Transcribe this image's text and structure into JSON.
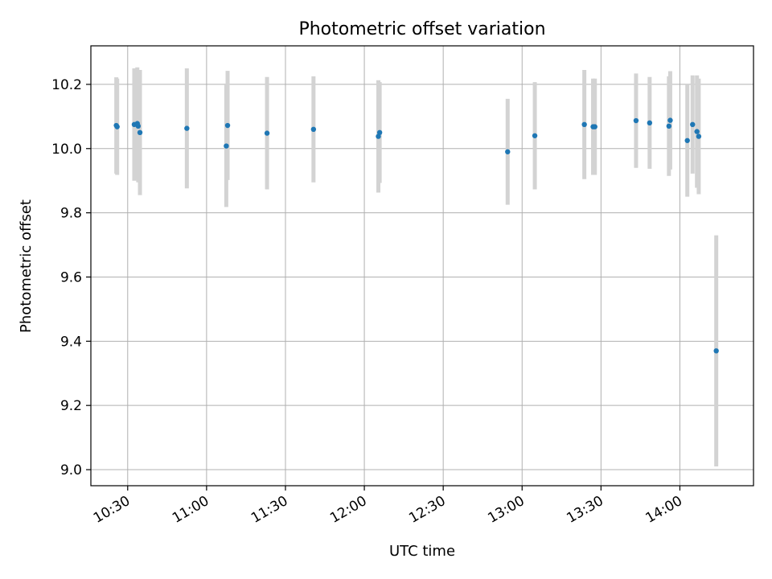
{
  "chart_data": {
    "type": "scatter",
    "title": "Photometric offset variation",
    "xlabel": "UTC time",
    "ylabel": "Photometric offset",
    "xlim": [
      "10:16",
      "14:28"
    ],
    "ylim": [
      8.95,
      10.32
    ],
    "x_ticks": [
      "10:30",
      "11:00",
      "11:30",
      "12:00",
      "12:30",
      "13:00",
      "13:30",
      "14:00"
    ],
    "y_ticks": [
      "9.0",
      "9.2",
      "9.4",
      "9.6",
      "9.8",
      "10.0",
      "10.2"
    ],
    "grid": true,
    "point_color": "#1f77b4",
    "errorbar_color": "#d3d3d3",
    "points": [
      {
        "t": "10:25:40",
        "y": 10.072,
        "err": 0.15
      },
      {
        "t": "10:26:00",
        "y": 10.068,
        "err": 0.15
      },
      {
        "t": "10:32:30",
        "y": 10.075,
        "err": 0.175
      },
      {
        "t": "10:33:40",
        "y": 10.078,
        "err": 0.175
      },
      {
        "t": "10:34:00",
        "y": 10.07,
        "err": 0.175
      },
      {
        "t": "10:34:40",
        "y": 10.05,
        "err": 0.195
      },
      {
        "t": "10:52:30",
        "y": 10.063,
        "err": 0.187
      },
      {
        "t": "11:07:30",
        "y": 10.008,
        "err": 0.19
      },
      {
        "t": "11:08:00",
        "y": 10.072,
        "err": 0.17
      },
      {
        "t": "11:23:00",
        "y": 10.048,
        "err": 0.175
      },
      {
        "t": "11:40:40",
        "y": 10.06,
        "err": 0.165
      },
      {
        "t": "12:05:20",
        "y": 10.038,
        "err": 0.175
      },
      {
        "t": "12:05:50",
        "y": 10.05,
        "err": 0.157
      },
      {
        "t": "12:54:30",
        "y": 9.99,
        "err": 0.165
      },
      {
        "t": "13:04:50",
        "y": 10.04,
        "err": 0.167
      },
      {
        "t": "13:23:40",
        "y": 10.075,
        "err": 0.17
      },
      {
        "t": "13:27:00",
        "y": 10.068,
        "err": 0.15
      },
      {
        "t": "13:27:40",
        "y": 10.068,
        "err": 0.15
      },
      {
        "t": "13:43:20",
        "y": 10.087,
        "err": 0.147
      },
      {
        "t": "13:48:30",
        "y": 10.08,
        "err": 0.143
      },
      {
        "t": "13:55:50",
        "y": 10.07,
        "err": 0.155
      },
      {
        "t": "13:56:20",
        "y": 10.088,
        "err": 0.153
      },
      {
        "t": "14:02:50",
        "y": 10.025,
        "err": 0.175
      },
      {
        "t": "14:04:50",
        "y": 10.075,
        "err": 0.153
      },
      {
        "t": "14:06:30",
        "y": 10.053,
        "err": 0.175
      },
      {
        "t": "14:07:10",
        "y": 10.038,
        "err": 0.18
      },
      {
        "t": "14:13:50",
        "y": 9.37,
        "err": 0.36
      }
    ]
  }
}
